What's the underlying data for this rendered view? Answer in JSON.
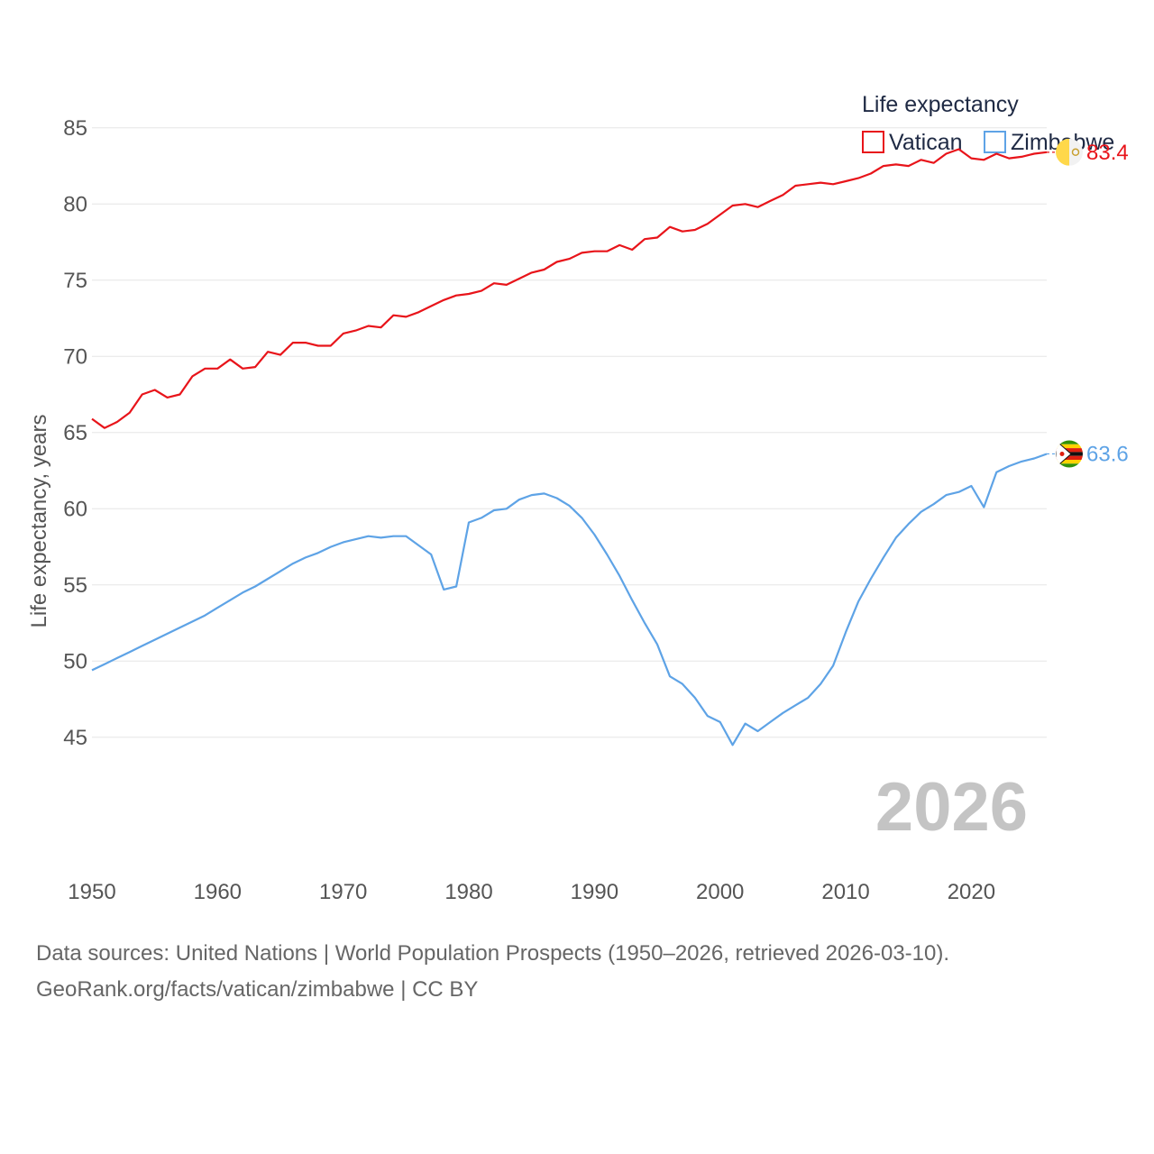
{
  "chart_data": {
    "type": "line",
    "legend": {
      "title": "Life expectancy",
      "placement": "top-right"
    },
    "ylabel": "Life expectancy, years",
    "xlabel": "",
    "ylim": [
      42,
      86
    ],
    "xlim": [
      1950,
      2026
    ],
    "y_ticks": [
      45,
      50,
      55,
      60,
      65,
      70,
      75,
      80,
      85
    ],
    "x_ticks": [
      1950,
      1960,
      1970,
      1980,
      1990,
      2000,
      2010,
      2020
    ],
    "grid": true,
    "current_year": "2026",
    "x": [
      1950,
      1951,
      1952,
      1953,
      1954,
      1955,
      1956,
      1957,
      1958,
      1959,
      1960,
      1961,
      1962,
      1963,
      1964,
      1965,
      1966,
      1967,
      1968,
      1969,
      1970,
      1971,
      1972,
      1973,
      1974,
      1975,
      1976,
      1977,
      1978,
      1979,
      1980,
      1981,
      1982,
      1983,
      1984,
      1985,
      1986,
      1987,
      1988,
      1989,
      1990,
      1991,
      1992,
      1993,
      1994,
      1995,
      1996,
      1997,
      1998,
      1999,
      2000,
      2001,
      2002,
      2003,
      2004,
      2005,
      2006,
      2007,
      2008,
      2009,
      2010,
      2011,
      2012,
      2013,
      2014,
      2015,
      2016,
      2017,
      2018,
      2019,
      2020,
      2021,
      2022,
      2023,
      2024,
      2025,
      2026
    ],
    "series": [
      {
        "name": "Vatican",
        "color": "#e8141a",
        "end_label": "83.4",
        "flag_icon": "vatican-flag-icon",
        "values": [
          65.9,
          65.3,
          65.7,
          66.3,
          67.5,
          67.8,
          67.3,
          67.5,
          68.7,
          69.2,
          69.2,
          69.8,
          69.2,
          69.3,
          70.3,
          70.1,
          70.9,
          70.9,
          70.7,
          70.7,
          71.5,
          71.7,
          72.0,
          71.9,
          72.7,
          72.6,
          72.9,
          73.3,
          73.7,
          74.0,
          74.1,
          74.3,
          74.8,
          74.7,
          75.1,
          75.5,
          75.7,
          76.2,
          76.4,
          76.8,
          76.9,
          76.9,
          77.3,
          77.0,
          77.7,
          77.8,
          78.5,
          78.2,
          78.3,
          78.7,
          79.3,
          79.9,
          80.0,
          79.8,
          80.2,
          80.6,
          81.2,
          81.3,
          81.4,
          81.3,
          81.5,
          81.7,
          82.0,
          82.5,
          82.6,
          82.5,
          82.9,
          82.7,
          83.3,
          83.6,
          83.0,
          82.9,
          83.3,
          83.0,
          83.1,
          83.3,
          83.4
        ]
      },
      {
        "name": "Zimbabwe",
        "color": "#5ea3e6",
        "end_label": "63.6",
        "flag_icon": "zimbabwe-flag-icon",
        "values": [
          49.4,
          49.8,
          50.2,
          50.6,
          51.0,
          51.4,
          51.8,
          52.2,
          52.6,
          53.0,
          53.5,
          54.0,
          54.5,
          54.9,
          55.4,
          55.9,
          56.4,
          56.8,
          57.1,
          57.5,
          57.8,
          58.0,
          58.2,
          58.1,
          58.2,
          58.2,
          57.6,
          57.0,
          54.7,
          54.9,
          59.1,
          59.4,
          59.9,
          60.0,
          60.6,
          60.9,
          61.0,
          60.7,
          60.2,
          59.4,
          58.3,
          57.0,
          55.6,
          54.0,
          52.5,
          51.1,
          49.0,
          48.5,
          47.6,
          46.4,
          46.0,
          44.5,
          45.9,
          45.4,
          46.0,
          46.6,
          47.1,
          47.6,
          48.5,
          49.7,
          51.9,
          53.9,
          55.4,
          56.8,
          58.1,
          59.0,
          59.8,
          60.3,
          60.9,
          61.1,
          61.5,
          60.1,
          62.4,
          62.8,
          63.1,
          63.3,
          63.6
        ]
      }
    ]
  },
  "footer": {
    "source_line": "Data sources: United Nations | World Population Prospects (1950–2026, retrieved 2026-03-10).",
    "credit_line": "GeoRank.org/facts/vatican/zimbabwe | CC BY"
  }
}
